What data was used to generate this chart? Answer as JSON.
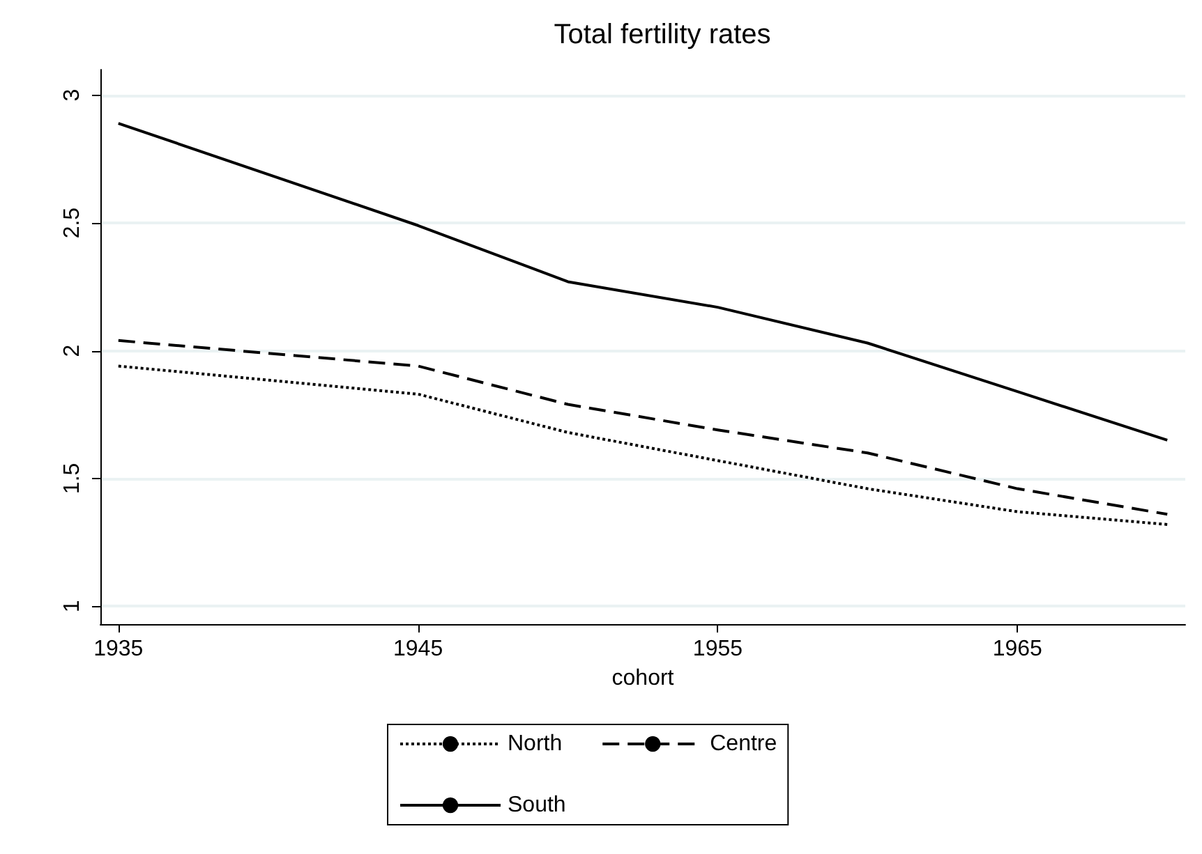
{
  "chart_data": {
    "type": "line",
    "title": "Total fertility rates",
    "xlabel": "cohort",
    "x": [
      1935,
      1945,
      1950,
      1955,
      1960,
      1965,
      1970
    ],
    "series": [
      {
        "name": "North",
        "color": "#000000",
        "line_style": "dotted",
        "values": [
          1.94,
          1.83,
          1.68,
          1.57,
          1.46,
          1.37,
          1.32
        ]
      },
      {
        "name": "Centre",
        "color": "#000000",
        "line_style": "dashed",
        "values": [
          2.04,
          1.94,
          1.79,
          1.69,
          1.6,
          1.46,
          1.36
        ]
      },
      {
        "name": "South",
        "color": "#000000",
        "line_style": "solid",
        "values": [
          2.89,
          2.49,
          2.27,
          2.17,
          2.03,
          1.84,
          1.65
        ]
      }
    ],
    "xlim": [
      1934.4,
      1970.6
    ],
    "xticks": [
      1935,
      1945,
      1955,
      1965
    ],
    "ylim": [
      0.93,
      3.1
    ],
    "yticks": [
      1,
      1.5,
      2,
      2.5,
      3
    ],
    "grid": "y",
    "legend": "bottom",
    "marker": "none"
  }
}
